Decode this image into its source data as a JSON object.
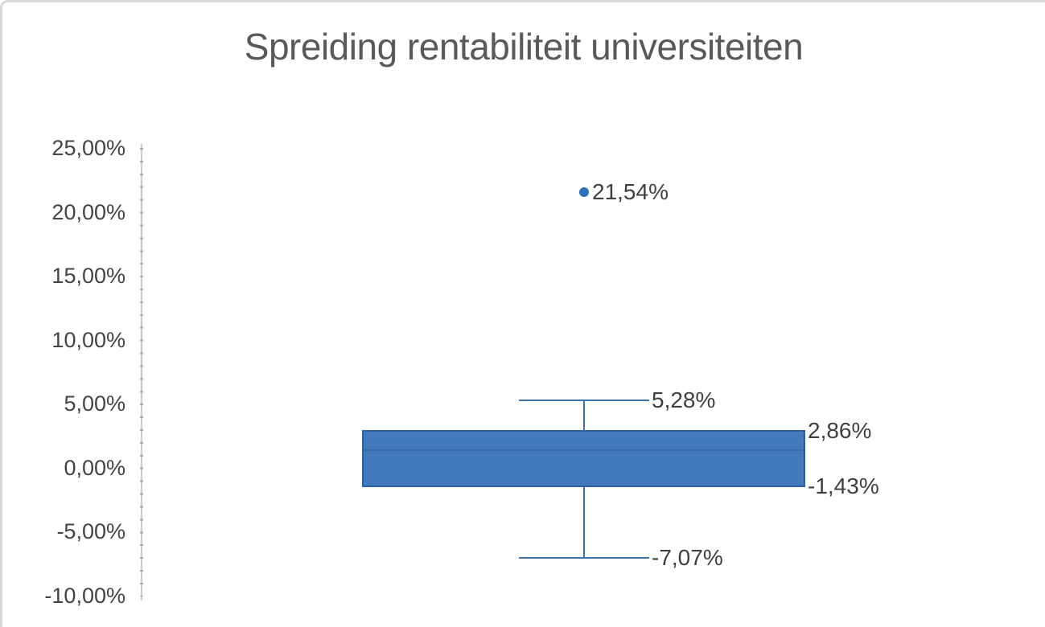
{
  "title": "Spreiding rentabiliteit universiteiten",
  "colors": {
    "frame_border": "#d9d9d9",
    "title_text": "#595959",
    "axis_text": "#444444",
    "label_text": "#3f3f3f",
    "axis_line": "#c9c9c9",
    "axis_tick": "#a9a9a9",
    "box_fill": "#4579be",
    "box_border": "#2f5f9e",
    "median_line": "#3a6aa4",
    "whisker_line": "#3b72b2",
    "outlier_dot": "#2e73b8"
  },
  "chart_data": {
    "type": "boxplot",
    "title": "Spreiding rentabiliteit universiteiten",
    "xlabel": "",
    "ylabel": "",
    "y_unit": "%",
    "ylim": [
      -10,
      25
    ],
    "grid": false,
    "legend": false,
    "y_ticks": [
      {
        "value": 25,
        "label": "25,00%"
      },
      {
        "value": 20,
        "label": "20,00%"
      },
      {
        "value": 15,
        "label": "15,00%"
      },
      {
        "value": 10,
        "label": "10,00%"
      },
      {
        "value": 5,
        "label": "5,00%"
      },
      {
        "value": 0,
        "label": "0,00%"
      },
      {
        "value": -5,
        "label": "-5,00%"
      },
      {
        "value": -10,
        "label": "-10,00%"
      }
    ],
    "box": {
      "whisker_high": {
        "value": 5.28,
        "label": "5,28%"
      },
      "q3": {
        "value": 2.86,
        "label": "2,86%"
      },
      "median": {
        "value": 1.4,
        "label": ""
      },
      "q1": {
        "value": -1.43,
        "label": "-1,43%"
      },
      "whisker_low": {
        "value": -7.07,
        "label": "-7,07%"
      }
    },
    "outliers": [
      {
        "value": 21.54,
        "label": "21,54%"
      }
    ]
  }
}
